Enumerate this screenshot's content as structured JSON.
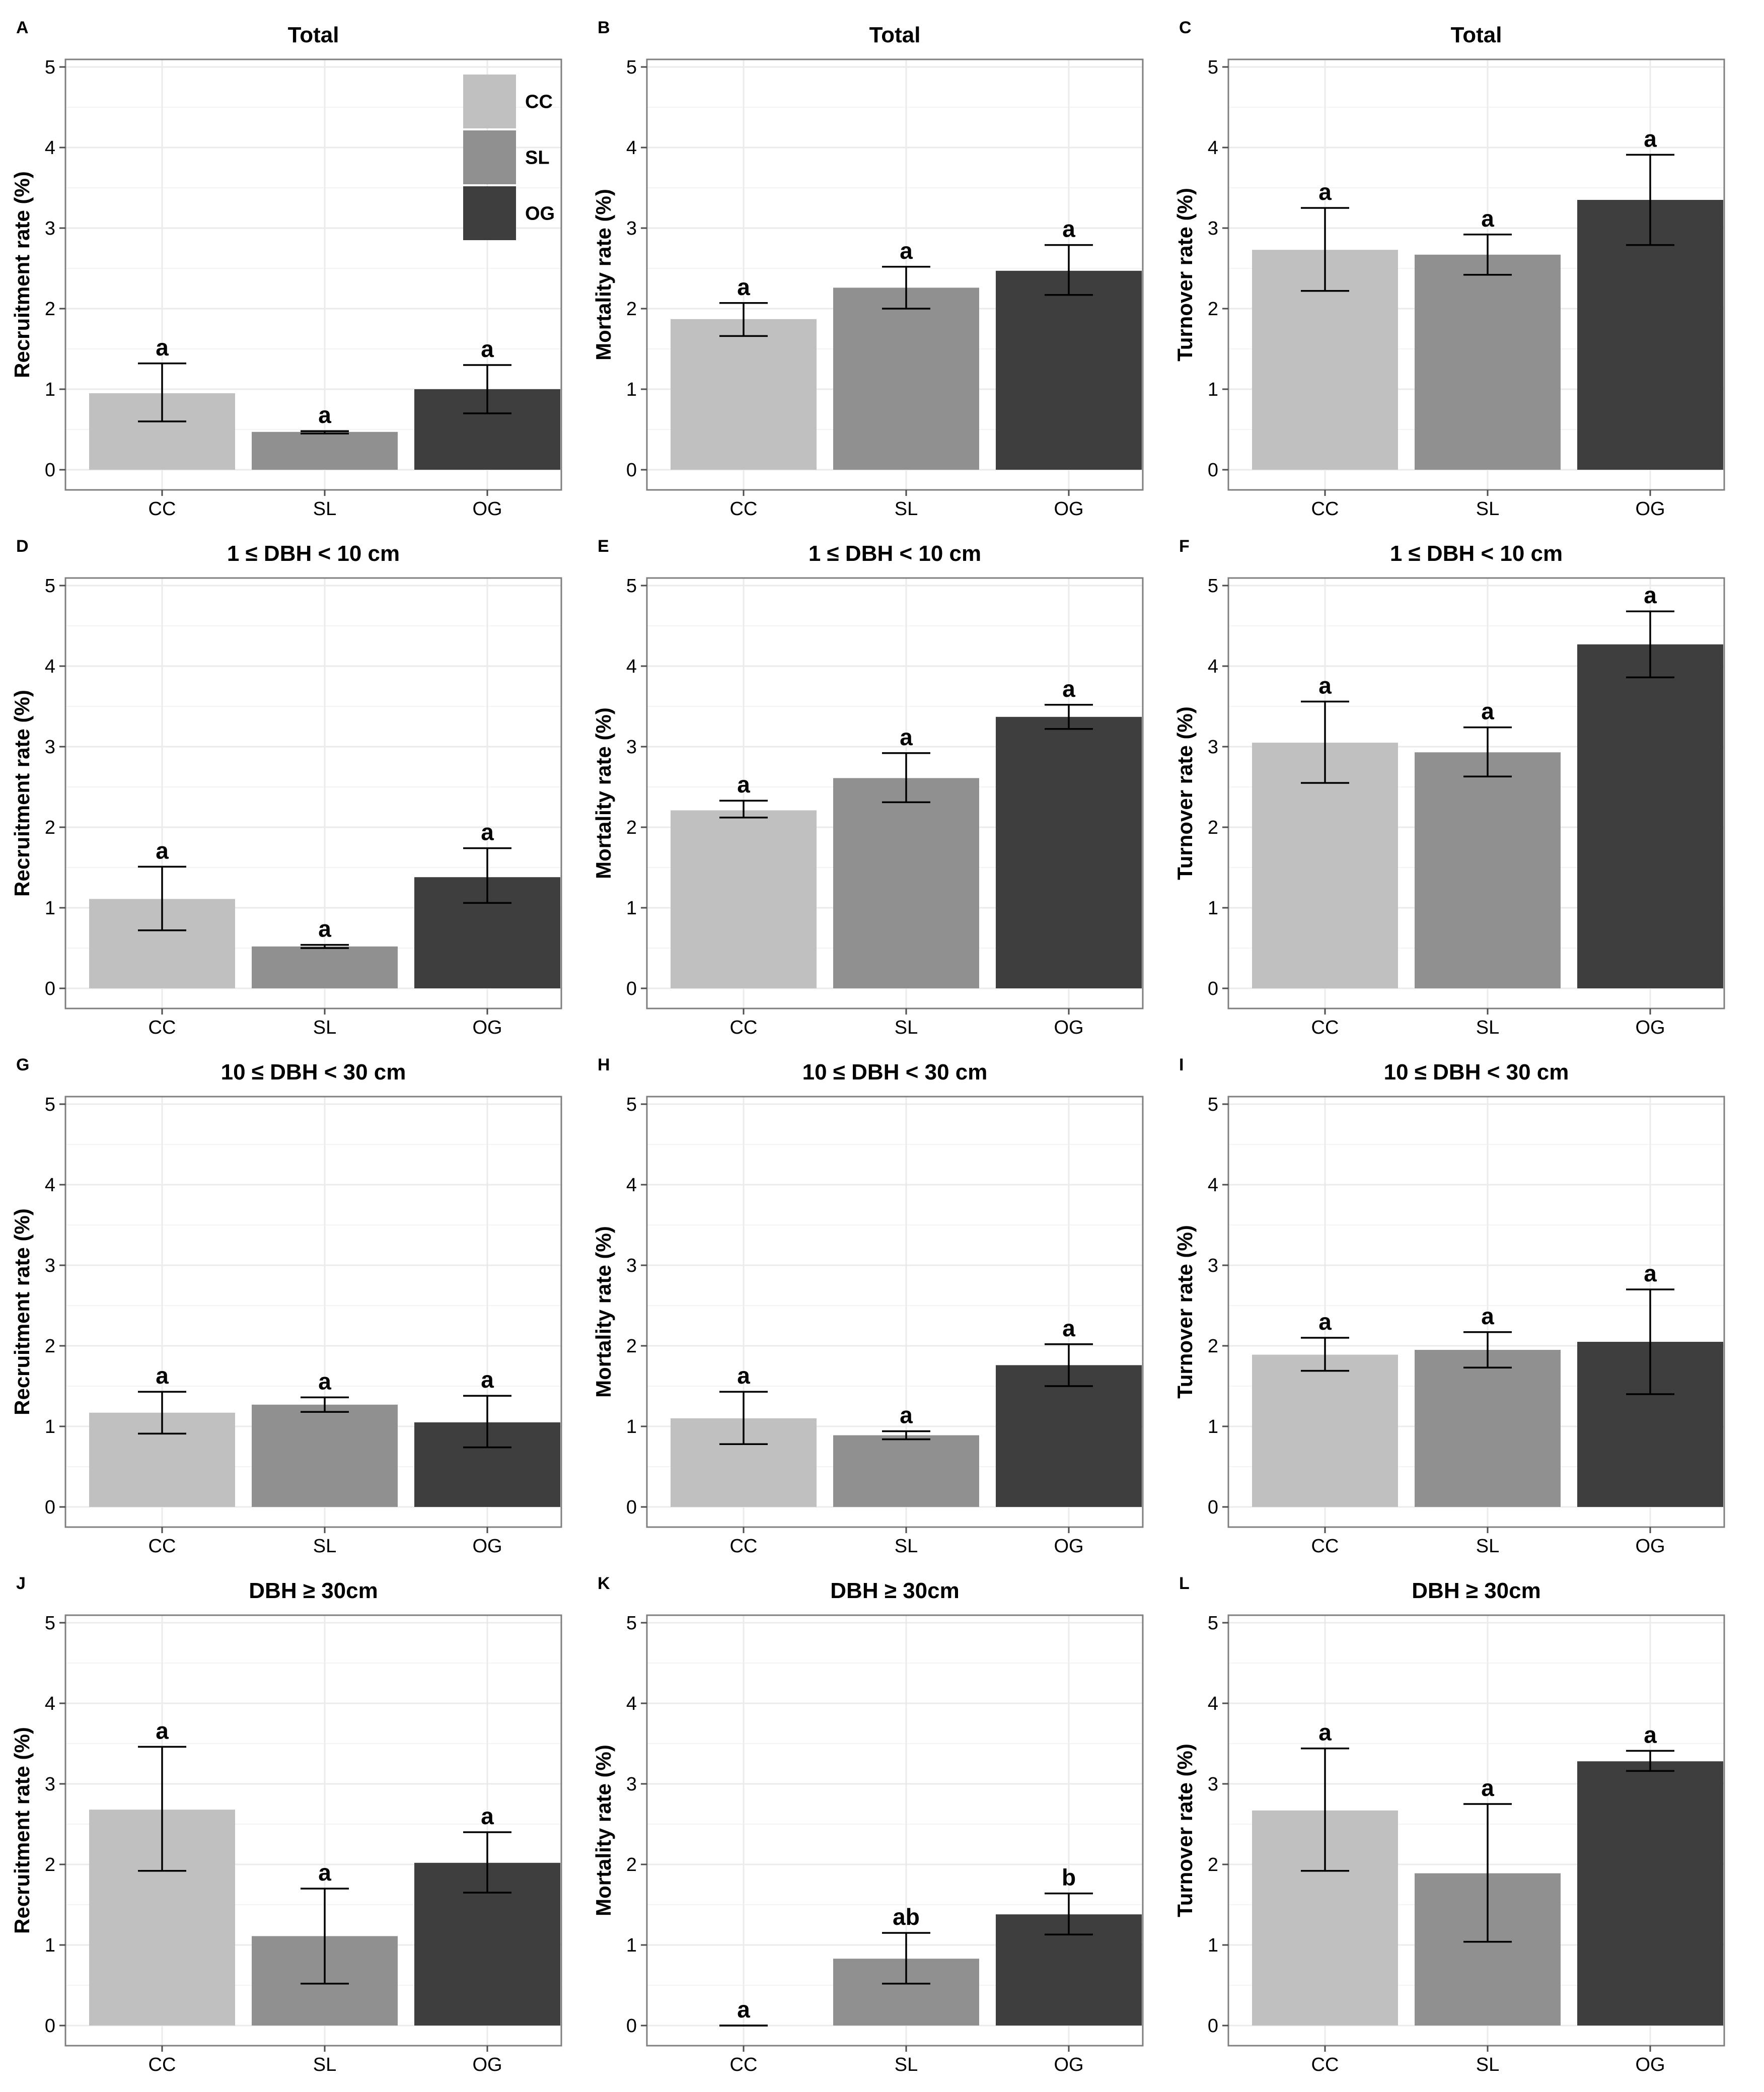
{
  "colors": {
    "CC": "#c0c0c0",
    "SL": "#909090",
    "OG": "#3e3e3e"
  },
  "chart_data": [
    {
      "type": "bar",
      "panel": "A",
      "title": "Total",
      "ylabel": "Recruitment rate (%)",
      "xlabel": "",
      "ylim": [
        0,
        5.25
      ],
      "yticks": [
        "0",
        "1",
        "2",
        "3",
        "4",
        "5"
      ],
      "categories": [
        "CC",
        "SL",
        "OG"
      ],
      "values": [
        0.95,
        0.47,
        1.0
      ],
      "err_low": [
        0.6,
        0.45,
        0.7
      ],
      "err_high": [
        1.32,
        0.48,
        1.3
      ],
      "sig": [
        "a",
        "a",
        "a"
      ],
      "legend": {
        "entries": [
          "CC",
          "SL",
          "OG"
        ],
        "placement": "top-right"
      },
      "grid": true
    },
    {
      "type": "bar",
      "panel": "B",
      "title": "Total",
      "ylabel": "Mortality rate (%)",
      "xlabel": "",
      "ylim": [
        0,
        5.25
      ],
      "yticks": [
        "0",
        "1",
        "2",
        "3",
        "4",
        "5"
      ],
      "categories": [
        "CC",
        "SL",
        "OG"
      ],
      "values": [
        1.87,
        2.26,
        2.47
      ],
      "err_low": [
        1.66,
        2.0,
        2.17
      ],
      "err_high": [
        2.07,
        2.52,
        2.79
      ],
      "sig": [
        "a",
        "a",
        "a"
      ],
      "grid": true
    },
    {
      "type": "bar",
      "panel": "C",
      "title": "Total",
      "ylabel": "Turnover rate (%)",
      "xlabel": "",
      "ylim": [
        0,
        5.25
      ],
      "yticks": [
        "0",
        "1",
        "2",
        "3",
        "4",
        "5"
      ],
      "categories": [
        "CC",
        "SL",
        "OG"
      ],
      "values": [
        2.73,
        2.67,
        3.35
      ],
      "err_low": [
        2.22,
        2.42,
        2.79
      ],
      "err_high": [
        3.25,
        2.92,
        3.91
      ],
      "sig": [
        "a",
        "a",
        "a"
      ],
      "grid": true
    },
    {
      "type": "bar",
      "panel": "D",
      "title": "1 ≤ DBH < 10 cm",
      "ylabel": "Recruitment rate (%)",
      "xlabel": "",
      "ylim": [
        0,
        5.25
      ],
      "yticks": [
        "0",
        "1",
        "2",
        "3",
        "4",
        "5"
      ],
      "categories": [
        "CC",
        "SL",
        "OG"
      ],
      "values": [
        1.11,
        0.52,
        1.38
      ],
      "err_low": [
        0.72,
        0.5,
        1.06
      ],
      "err_high": [
        1.51,
        0.54,
        1.74
      ],
      "sig": [
        "a",
        "a",
        "a"
      ],
      "grid": true
    },
    {
      "type": "bar",
      "panel": "E",
      "title": "1 ≤ DBH < 10 cm",
      "ylabel": "Mortality rate (%)",
      "xlabel": "",
      "ylim": [
        0,
        5.25
      ],
      "yticks": [
        "0",
        "1",
        "2",
        "3",
        "4",
        "5"
      ],
      "categories": [
        "CC",
        "SL",
        "OG"
      ],
      "values": [
        2.21,
        2.61,
        3.37
      ],
      "err_low": [
        2.12,
        2.31,
        3.22
      ],
      "err_high": [
        2.33,
        2.92,
        3.52
      ],
      "sig": [
        "a",
        "a",
        "a"
      ],
      "grid": true
    },
    {
      "type": "bar",
      "panel": "F",
      "title": "1 ≤ DBH < 10 cm",
      "ylabel": "Turnover rate (%)",
      "xlabel": "",
      "ylim": [
        0,
        5.25
      ],
      "yticks": [
        "0",
        "1",
        "2",
        "3",
        "4",
        "5"
      ],
      "categories": [
        "CC",
        "SL",
        "OG"
      ],
      "values": [
        3.05,
        2.93,
        4.27
      ],
      "err_low": [
        2.55,
        2.63,
        3.86
      ],
      "err_high": [
        3.56,
        3.24,
        4.68
      ],
      "sig": [
        "a",
        "a",
        "a"
      ],
      "grid": true
    },
    {
      "type": "bar",
      "panel": "G",
      "title": "10 ≤ DBH < 30 cm",
      "ylabel": "Recruitment rate (%)",
      "xlabel": "",
      "ylim": [
        0,
        5.25
      ],
      "yticks": [
        "0",
        "1",
        "2",
        "3",
        "4",
        "5"
      ],
      "categories": [
        "CC",
        "SL",
        "OG"
      ],
      "values": [
        1.17,
        1.27,
        1.05
      ],
      "err_low": [
        0.91,
        1.18,
        0.74
      ],
      "err_high": [
        1.43,
        1.36,
        1.38
      ],
      "sig": [
        "a",
        "a",
        "a"
      ],
      "grid": true
    },
    {
      "type": "bar",
      "panel": "H",
      "title": "10 ≤ DBH < 30 cm",
      "ylabel": "Mortality rate (%)",
      "xlabel": "",
      "ylim": [
        0,
        5.25
      ],
      "yticks": [
        "0",
        "1",
        "2",
        "3",
        "4",
        "5"
      ],
      "categories": [
        "CC",
        "SL",
        "OG"
      ],
      "values": [
        1.1,
        0.89,
        1.76
      ],
      "err_low": [
        0.78,
        0.84,
        1.5
      ],
      "err_high": [
        1.43,
        0.94,
        2.02
      ],
      "sig": [
        "a",
        "a",
        "a"
      ],
      "grid": true
    },
    {
      "type": "bar",
      "panel": "I",
      "title": "10 ≤ DBH < 30 cm",
      "ylabel": "Turnover rate (%)",
      "xlabel": "",
      "ylim": [
        0,
        5.25
      ],
      "yticks": [
        "0",
        "1",
        "2",
        "3",
        "4",
        "5"
      ],
      "categories": [
        "CC",
        "SL",
        "OG"
      ],
      "values": [
        1.89,
        1.95,
        2.05
      ],
      "err_low": [
        1.69,
        1.73,
        1.4
      ],
      "err_high": [
        2.1,
        2.17,
        2.7
      ],
      "sig": [
        "a",
        "a",
        "a"
      ],
      "grid": true
    },
    {
      "type": "bar",
      "panel": "J",
      "title": "DBH ≥ 30cm",
      "ylabel": "Recruitment rate (%)",
      "xlabel": "",
      "ylim": [
        0,
        5.25
      ],
      "yticks": [
        "0",
        "1",
        "2",
        "3",
        "4",
        "5"
      ],
      "categories": [
        "CC",
        "SL",
        "OG"
      ],
      "values": [
        2.68,
        1.11,
        2.02
      ],
      "err_low": [
        1.92,
        0.52,
        1.65
      ],
      "err_high": [
        3.46,
        1.7,
        2.4
      ],
      "sig": [
        "a",
        "a",
        "a"
      ],
      "grid": true
    },
    {
      "type": "bar",
      "panel": "K",
      "title": "DBH ≥ 30cm",
      "ylabel": "Mortality rate (%)",
      "xlabel": "",
      "ylim": [
        0,
        5.25
      ],
      "yticks": [
        "0",
        "1",
        "2",
        "3",
        "4",
        "5"
      ],
      "categories": [
        "CC",
        "SL",
        "OG"
      ],
      "values": [
        0.0,
        0.83,
        1.38
      ],
      "err_low": [
        0.0,
        0.52,
        1.13
      ],
      "err_high": [
        0.0,
        1.15,
        1.64
      ],
      "sig": [
        "a",
        "ab",
        "b"
      ],
      "grid": true
    },
    {
      "type": "bar",
      "panel": "L",
      "title": "DBH ≥ 30cm",
      "ylabel": "Turnover rate (%)",
      "xlabel": "",
      "ylim": [
        0,
        5.25
      ],
      "yticks": [
        "0",
        "1",
        "2",
        "3",
        "4",
        "5"
      ],
      "categories": [
        "CC",
        "SL",
        "OG"
      ],
      "values": [
        2.67,
        1.89,
        3.28
      ],
      "err_low": [
        1.92,
        1.04,
        3.16
      ],
      "err_high": [
        3.44,
        2.75,
        3.41
      ],
      "sig": [
        "a",
        "a",
        "a"
      ],
      "grid": true
    }
  ]
}
